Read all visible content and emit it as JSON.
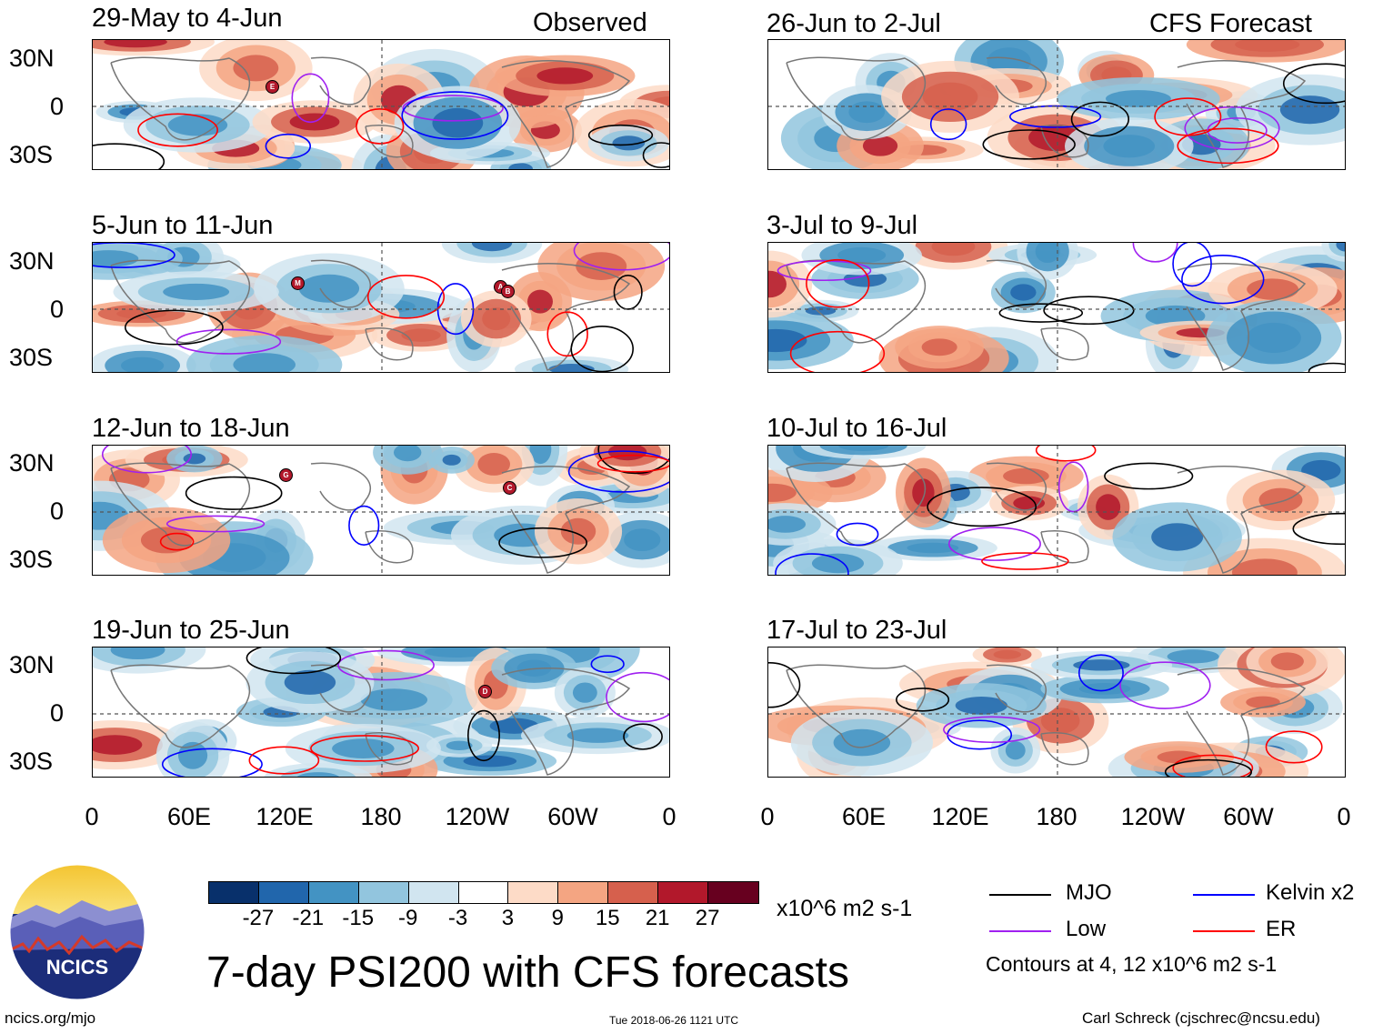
{
  "figure": {
    "main_title": "7-day PSI200 with CFS forecasts",
    "units": "x10^6 m2 s-1",
    "contour_note": "Contours at 4, 12 x10^6 m2 s-1",
    "left_header": "Observed",
    "right_header": "CFS Forecast",
    "footer_left": "ncics.org/mjo",
    "footer_center": "Tue 2018-06-26 1121 UTC",
    "footer_right": "Carl Schreck (cjschrec@ncsu.edu)",
    "logo_text": "NCICS"
  },
  "axes": {
    "y_ticks": [
      "30N",
      "0",
      "30S"
    ],
    "x_ticks": [
      "0",
      "60E",
      "120E",
      "180",
      "120W",
      "60W",
      "0"
    ]
  },
  "panels_left": [
    {
      "title": "29-May to 4-Jun",
      "storms": [
        "E"
      ]
    },
    {
      "title": "5-Jun to 11-Jun",
      "storms": [
        "M",
        "A",
        "B"
      ]
    },
    {
      "title": "12-Jun to 18-Jun",
      "storms": [
        "G",
        "C"
      ]
    },
    {
      "title": "19-Jun to 25-Jun",
      "storms": [
        "D"
      ]
    }
  ],
  "panels_right": [
    {
      "title": "26-Jun to 2-Jul"
    },
    {
      "title": "3-Jul to 9-Jul"
    },
    {
      "title": "10-Jul to 16-Jul"
    },
    {
      "title": "17-Jul to 23-Jul"
    }
  ],
  "colorbar": {
    "labels": [
      "-27",
      "-21",
      "-15",
      "-9",
      "-3",
      "3",
      "9",
      "15",
      "21",
      "27"
    ],
    "colors": [
      "#08306b",
      "#2166ac",
      "#4393c3",
      "#92c5de",
      "#d1e5f0",
      "#ffffff",
      "#fddbc7",
      "#f4a582",
      "#d6604d",
      "#b2182b",
      "#67001f"
    ]
  },
  "legend": [
    {
      "label": "MJO",
      "color": "#000000"
    },
    {
      "label": "Kelvin x2",
      "color": "#0000ff"
    },
    {
      "label": "Low",
      "color": "#a020f0"
    },
    {
      "label": "ER",
      "color": "#ff0000"
    }
  ]
}
